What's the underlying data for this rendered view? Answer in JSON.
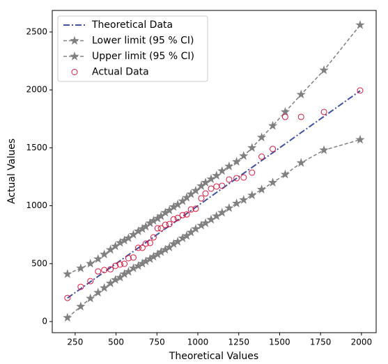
{
  "chart_data": {
    "type": "line",
    "xlabel": "Theoretical Values",
    "ylabel": "Actual Values",
    "xlim": [
      110,
      2090
    ],
    "ylim": [
      -96,
      2686
    ],
    "xticks": [
      250,
      500,
      750,
      1000,
      1250,
      1500,
      1750,
      2000
    ],
    "yticks": [
      0,
      500,
      1000,
      1500,
      2000,
      2500
    ],
    "legend": "upper left",
    "x": [
      203,
      284,
      343,
      390,
      428,
      466,
      496,
      525,
      551,
      576,
      606,
      636,
      661,
      682,
      708,
      729,
      754,
      775,
      801,
      826,
      852,
      877,
      907,
      932,
      958,
      987,
      1021,
      1047,
      1081,
      1114,
      1148,
      1191,
      1237,
      1280,
      1331,
      1390,
      1458,
      1534,
      1631,
      1771,
      1992
    ],
    "series": [
      {
        "name": "Theoretical Data",
        "color": "#3f51a0",
        "style": "dashdot",
        "values": [
          203,
          284,
          343,
          390,
          428,
          466,
          496,
          525,
          551,
          576,
          606,
          636,
          661,
          682,
          708,
          729,
          754,
          775,
          801,
          826,
          852,
          877,
          907,
          932,
          958,
          987,
          1021,
          1047,
          1081,
          1114,
          1148,
          1191,
          1237,
          1280,
          1331,
          1390,
          1458,
          1534,
          1631,
          1771,
          1992
        ]
      },
      {
        "name": "Lower limit (95 % CI)",
        "color": "#808080",
        "style": "star",
        "values": [
          33,
          130,
          200,
          250,
          290,
          330,
          360,
          380,
          410,
          430,
          460,
          480,
          500,
          520,
          540,
          560,
          580,
          600,
          620,
          640,
          670,
          690,
          720,
          740,
          770,
          800,
          830,
          850,
          880,
          910,
          940,
          980,
          1020,
          1050,
          1090,
          1140,
          1200,
          1270,
          1370,
          1480,
          1570
        ]
      },
      {
        "name": "Upper limit (95 % CI)",
        "color": "#808080",
        "style": "star",
        "values": [
          410,
          460,
          500,
          540,
          580,
          620,
          650,
          680,
          700,
          720,
          750,
          780,
          800,
          820,
          850,
          870,
          890,
          910,
          940,
          960,
          990,
          1010,
          1040,
          1070,
          1100,
          1130,
          1170,
          1200,
          1230,
          1260,
          1300,
          1340,
          1380,
          1430,
          1500,
          1590,
          1690,
          1810,
          1960,
          2170,
          2560
        ]
      },
      {
        "name": "Actual Data",
        "color": "#dc143c",
        "style": "circle",
        "values": [
          204,
          300,
          349,
          433,
          445,
          451,
          481,
          493,
          499,
          547,
          553,
          637,
          637,
          673,
          679,
          727,
          805,
          805,
          835,
          841,
          883,
          895,
          919,
          925,
          968,
          974,
          1064,
          1106,
          1148,
          1166,
          1172,
          1226,
          1238,
          1244,
          1286,
          1424,
          1490,
          1767,
          1767,
          1809,
          1995
        ]
      }
    ]
  }
}
